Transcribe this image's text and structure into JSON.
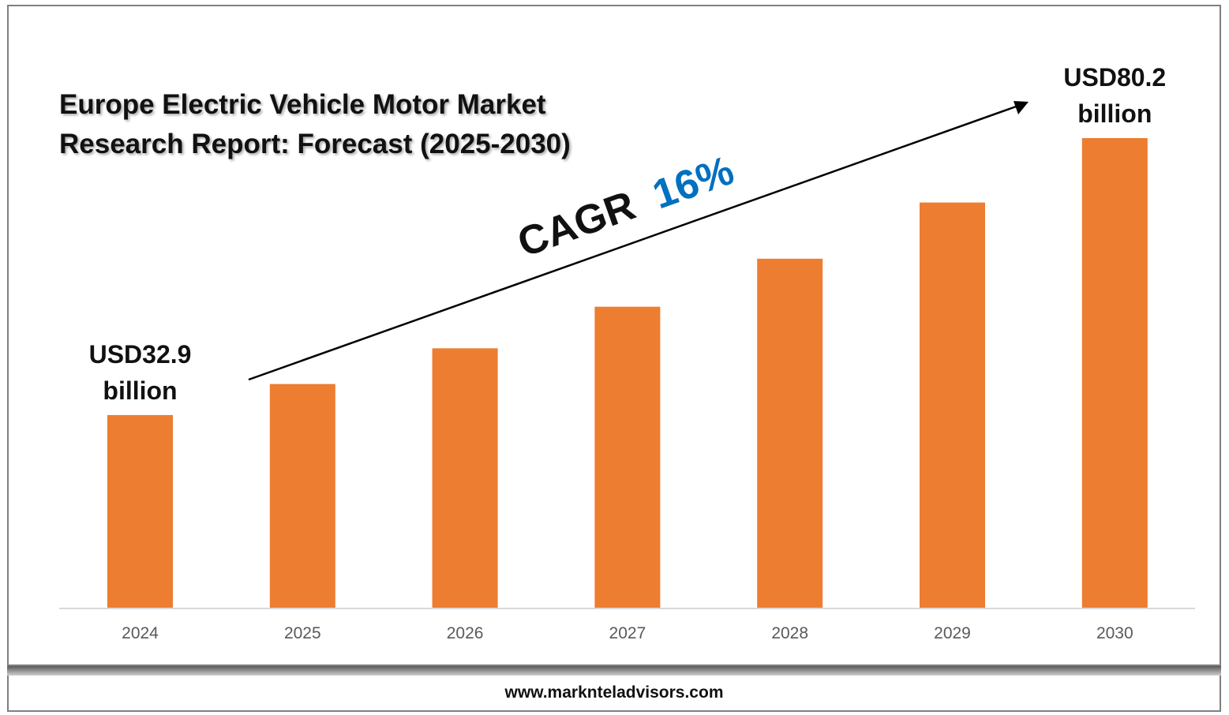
{
  "title_lines": [
    "Europe Electric Vehicle Motor Market",
    "Research Report: Forecast (2025-2030)"
  ],
  "footer": {
    "url": "www.marknteladvisors.com"
  },
  "cagr": {
    "label": "CAGR",
    "value": "16%"
  },
  "colors": {
    "bar": "#ED7D31",
    "cagr_value": "#0070C0",
    "axis": "#d9d9d9"
  },
  "chart_data": {
    "type": "bar",
    "categories": [
      "2024",
      "2025",
      "2026",
      "2027",
      "2028",
      "2029",
      "2030"
    ],
    "values": [
      32.9,
      38.2,
      44.3,
      51.4,
      59.6,
      69.2,
      80.2
    ],
    "ylim": [
      0,
      80.2
    ],
    "annotations": [
      {
        "category": "2024",
        "lines": [
          "USD32.9",
          "billion"
        ]
      },
      {
        "category": "2030",
        "lines": [
          "USD80.2",
          "billion"
        ]
      }
    ],
    "grid": false,
    "legend": "none"
  }
}
